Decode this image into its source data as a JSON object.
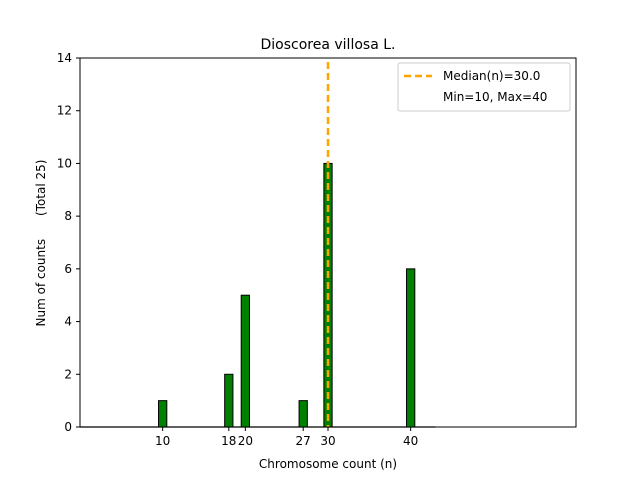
{
  "chart_data": {
    "type": "bar",
    "title": "Dioscorea villosa L.",
    "xlabel": "Chromosome count (n)",
    "ylabel": "Num of counts      (Total 25)",
    "xlim": [
      0,
      60
    ],
    "ylim": [
      0,
      14
    ],
    "yticks": [
      0,
      2,
      4,
      6,
      8,
      10,
      12,
      14
    ],
    "xticks": [
      10,
      18,
      20,
      27,
      30,
      40
    ],
    "bars": [
      {
        "x": 10,
        "value": 1
      },
      {
        "x": 18,
        "value": 2
      },
      {
        "x": 20,
        "value": 5
      },
      {
        "x": 27,
        "value": 1
      },
      {
        "x": 30,
        "value": 10
      },
      {
        "x": 40,
        "value": 6
      }
    ],
    "bar_width": 1,
    "bar_color": "#008000",
    "median_line": {
      "x": 30.0,
      "color": "#FFA500"
    },
    "legend": {
      "position": "top-right",
      "entries": [
        "Median(n)=30.0",
        "Min=10, Max=40"
      ]
    },
    "grid": false
  }
}
